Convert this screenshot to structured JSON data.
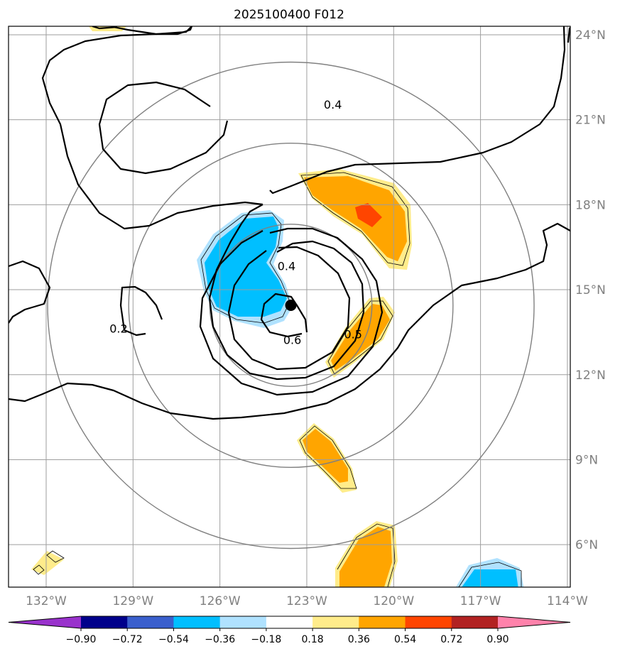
{
  "chart_data": {
    "type": "map-contour",
    "title": "2025100400 F012",
    "projection": "lat-lon",
    "lon_range": [
      -133.3,
      -113.9
    ],
    "lat_range": [
      4.5,
      24.3
    ],
    "lon_ticks": [
      -132,
      -129,
      -126,
      -123,
      -120,
      -117,
      -114
    ],
    "lon_tick_labels": [
      "132°W",
      "129°W",
      "126°W",
      "123°W",
      "120°W",
      "117°W",
      "114°W"
    ],
    "lat_ticks": [
      6,
      9,
      12,
      15,
      18,
      21,
      24
    ],
    "lat_tick_labels": [
      "6°N",
      "9°N",
      "12°N",
      "15°N",
      "18°N",
      "21°N",
      "24°N"
    ],
    "storm_center": {
      "lon": -123.55,
      "lat": 14.45
    },
    "range_ring_radii_deg": [
      2.8,
      5.6,
      8.4
    ],
    "contour_labels": [
      {
        "text": "0.4",
        "lon": -122.1,
        "lat": 21.5
      },
      {
        "text": "0.4",
        "lon": -123.7,
        "lat": 15.8
      },
      {
        "text": "0.2",
        "lon": -129.5,
        "lat": 13.6
      },
      {
        "text": "0.6",
        "lon": -123.5,
        "lat": 13.2
      },
      {
        "text": "0.5",
        "lon": -121.4,
        "lat": 13.4
      }
    ],
    "colorbar": {
      "levels": [
        -0.9,
        -0.72,
        -0.54,
        -0.36,
        -0.18,
        0.18,
        0.36,
        0.54,
        0.72,
        0.9
      ],
      "tick_labels": [
        "−0.90",
        "−0.72",
        "−0.54",
        "−0.36",
        "−0.18",
        "0.18",
        "0.36",
        "0.54",
        "0.72",
        "0.90"
      ],
      "colors": [
        "#9932cc",
        "#00008b",
        "#3a5fcd",
        "#00bfff",
        "#b0e2ff",
        "#ffffff",
        "#ffec8b",
        "#ffa500",
        "#ff4500",
        "#b22222",
        "#ff82ab"
      ],
      "extend": "both"
    }
  }
}
